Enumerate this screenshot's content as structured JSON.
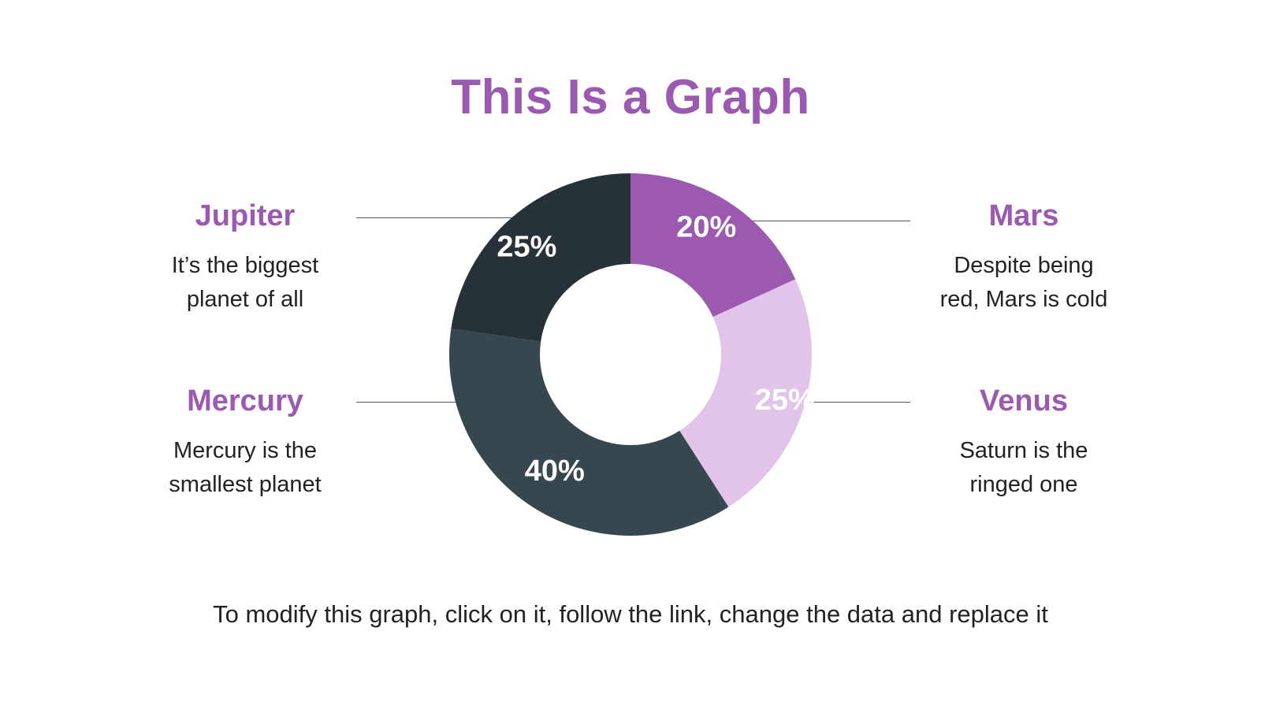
{
  "title": "This Is a Graph",
  "footer": "To modify this graph, click on it, follow the link, change the data and replace it",
  "labels": {
    "jupiter": {
      "name": "Jupiter",
      "desc_line1": "It’s the biggest",
      "desc_line2": "planet of all"
    },
    "mercury": {
      "name": "Mercury",
      "desc_line1": "Mercury is the",
      "desc_line2": "smallest planet"
    },
    "mars": {
      "name": "Mars",
      "desc_line1": "Despite being",
      "desc_line2": "red, Mars is cold"
    },
    "venus": {
      "name": "Venus",
      "desc_line1": "Saturn is the",
      "desc_line2": "ringed one"
    }
  },
  "colors": {
    "accent": "#9b59b0",
    "text": "#222222"
  },
  "chart_data": {
    "type": "pie",
    "donut": true,
    "categories": [
      "Mars",
      "Venus",
      "Mercury",
      "Jupiter"
    ],
    "values": [
      20,
      25,
      40,
      25
    ],
    "data_labels": [
      "20%",
      "25%",
      "40%",
      "25%"
    ],
    "colors": [
      "#9b59b0",
      "#e2c3e9",
      "#37474f",
      "#263238"
    ],
    "title": "This Is a Graph"
  }
}
